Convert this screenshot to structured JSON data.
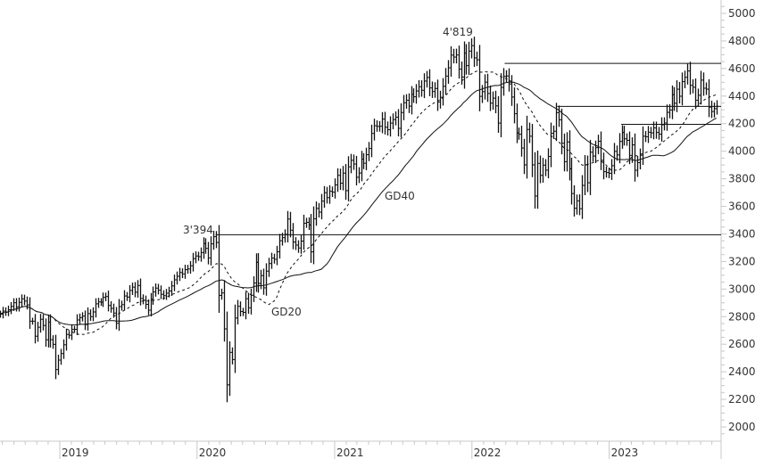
{
  "chart_data": {
    "type": "ohlc",
    "frequency": "weekly",
    "x_start": "2018-07-27",
    "series": [
      {
        "values": [
          2818,
          2840,
          2833,
          2850,
          2874,
          2901,
          2871,
          2904,
          2929,
          2913,
          2885,
          2767,
          2767,
          2658,
          2723,
          2781,
          2736,
          2632,
          2760,
          2633,
          2599,
          2416,
          2485,
          2532,
          2596,
          2671,
          2665,
          2707,
          2708,
          2776,
          2793,
          2804,
          2743,
          2822,
          2800,
          2834,
          2893,
          2907,
          2905,
          2940,
          2946,
          2881,
          2860,
          2826,
          2752,
          2873,
          2887,
          2950,
          2942,
          2990,
          3014,
          2977,
          3026,
          2932,
          2919,
          2889,
          2847,
          2926,
          2979,
          3007,
          2992,
          2962,
          2952,
          2970,
          2986,
          3023,
          3067,
          3093,
          3120,
          3110,
          3141,
          3146,
          3169,
          3221,
          3240,
          3235,
          3265,
          3330,
          3295,
          3226,
          3328,
          3380,
          3338,
          2954,
          2972,
          2711,
          2305,
          2541,
          2489,
          2790,
          2875,
          2837,
          2831,
          2930,
          2864,
          2955,
          3044,
          3194,
          3041,
          3098,
          3009,
          3130,
          3185,
          3225,
          3216,
          3271,
          3351,
          3373,
          3397,
          3508,
          3427,
          3341,
          3319,
          3298,
          3348,
          3477,
          3484,
          3465,
          3270,
          3510,
          3585,
          3558,
          3638,
          3699,
          3663,
          3709,
          3703,
          3756,
          3825,
          3768,
          3841,
          3714,
          3887,
          3934,
          3907,
          3811,
          3842,
          3943,
          3913,
          3975,
          4020,
          4129,
          4185,
          4180,
          4181,
          4233,
          4174,
          4156,
          4204,
          4230,
          4247,
          4166,
          4281,
          4352,
          4370,
          4327,
          4412,
          4395,
          4437,
          4468,
          4442,
          4509,
          4535,
          4459,
          4433,
          4455,
          4357,
          4391,
          4471,
          4545,
          4605,
          4697,
          4683,
          4698,
          4595,
          4538,
          4712,
          4621,
          4726,
          4766,
          4677,
          4663,
          4398,
          4432,
          4501,
          4419,
          4349,
          4385,
          4329,
          4204,
          4463,
          4543,
          4546,
          4488,
          4393,
          4272,
          4132,
          4123,
          4023,
          3901,
          4158,
          4109,
          3901,
          3675,
          3912,
          3825,
          3899,
          3863,
          3962,
          4130,
          4145,
          4280,
          4228,
          4058,
          3924,
          4067,
          3873,
          3693,
          3586,
          3640,
          3583,
          3752,
          3901,
          3771,
          3993,
          3965,
          4026,
          4072,
          3934,
          3852,
          3845,
          3840,
          3895,
          3999,
          3973,
          4071,
          4136,
          4090,
          4079,
          3970,
          4046,
          3862,
          3917,
          3971,
          4109,
          4105,
          4138,
          4133,
          4169,
          4136,
          4124,
          4192,
          4205,
          4282,
          4299,
          4410,
          4348,
          4450,
          4399,
          4505,
          4536,
          4582,
          4478,
          4464,
          4370,
          4406,
          4516,
          4457,
          4450,
          4320,
          4288,
          4309,
          4327
        ]
      }
    ],
    "moving_averages": [
      {
        "name": "GD20",
        "period": 20,
        "style": "dashed"
      },
      {
        "name": "GD40",
        "period": 40,
        "style": "solid"
      }
    ],
    "annotations": [
      {
        "text": "3'394",
        "value": 3394
      },
      {
        "text": "4'819",
        "value": 4819
      }
    ],
    "levels": [
      {
        "value": 3394,
        "from": "2020-02-19"
      },
      {
        "value": 4637,
        "from": "2022-03-29"
      },
      {
        "value": 4325,
        "from": "2022-08-16"
      },
      {
        "value": 4195,
        "from": "2023-02-02"
      }
    ],
    "ylim": [
      1900,
      5100
    ],
    "y_ticks": [
      "5000",
      "4800",
      "4600",
      "4400",
      "4200",
      "4000",
      "3800",
      "3600",
      "3400",
      "3200",
      "3000",
      "2800",
      "2600",
      "2400",
      "2200",
      "2000"
    ],
    "x_ticks": [
      "2019",
      "2020",
      "2021",
      "2022",
      "2023"
    ],
    "y_axis_position": "right",
    "grid": false,
    "colors": {
      "bars": "#111111",
      "lines": "#111111",
      "axis": "#c8c8c8",
      "text": "#333333"
    }
  }
}
